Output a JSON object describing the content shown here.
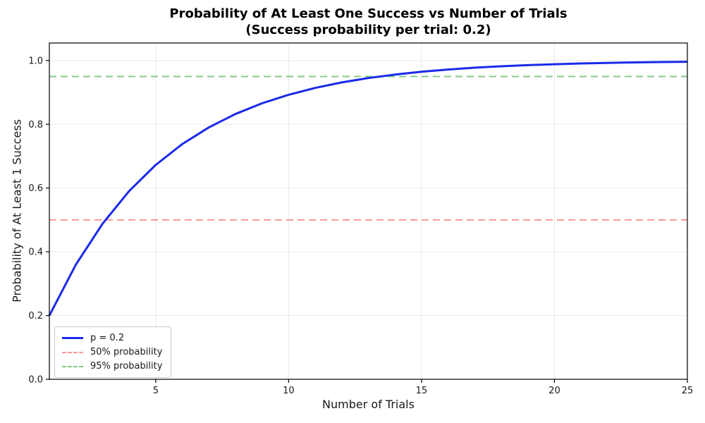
{
  "chart_data": {
    "type": "line",
    "title": "Probability of At Least One Success vs Number of Trials",
    "subtitle": "(Success probability per trial: 0.2)",
    "xlabel": "Number of Trials",
    "ylabel": "Probability of At Least 1 Success",
    "xlim": [
      1,
      25
    ],
    "ylim": [
      0,
      1.055
    ],
    "xticks": [
      5,
      10,
      15,
      20,
      25
    ],
    "xtick_labels": [
      "5",
      "10",
      "15",
      "20",
      "25"
    ],
    "yticks": [
      0.0,
      0.2,
      0.4,
      0.6,
      0.8,
      1.0
    ],
    "ytick_labels": [
      "0.0",
      "0.2",
      "0.4",
      "0.6",
      "0.8",
      "1.0"
    ],
    "grid": true,
    "legend_position": "lower left",
    "x": [
      1,
      2,
      3,
      4,
      5,
      6,
      7,
      8,
      9,
      10,
      11,
      12,
      13,
      14,
      15,
      16,
      17,
      18,
      19,
      20,
      21,
      22,
      23,
      24,
      25
    ],
    "series": [
      {
        "name": "p = 0.2",
        "color": "#1a2ae8",
        "line_style": "solid",
        "line_width": 3,
        "values": [
          0.2,
          0.36,
          0.488,
          0.5904,
          0.6723,
          0.7379,
          0.7903,
          0.8322,
          0.8658,
          0.8926,
          0.9141,
          0.9313,
          0.945,
          0.956,
          0.9648,
          0.9719,
          0.9775,
          0.982,
          0.9856,
          0.9885,
          0.9908,
          0.9926,
          0.9941,
          0.9953,
          0.9962
        ]
      }
    ],
    "reference_lines": [
      {
        "name": "50% probability",
        "y": 0.5,
        "color": "#f89898",
        "line_style": "dashed"
      },
      {
        "name": "95% probability",
        "y": 0.95,
        "color": "#85c985",
        "line_style": "dashed"
      }
    ],
    "colors": {
      "grid": "#e9e9e9",
      "spine": "#000000",
      "background": "#ffffff"
    }
  }
}
